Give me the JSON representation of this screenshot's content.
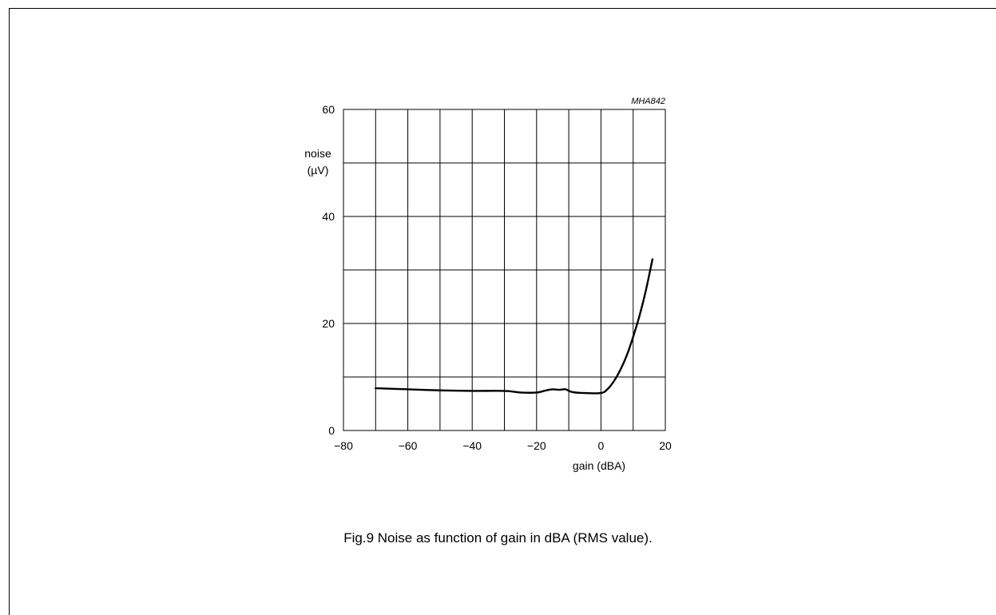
{
  "figure_code": "MHA842",
  "caption": "Fig.9  Noise as function of gain in dBA (RMS value).",
  "chart_data": {
    "type": "line",
    "xlabel": "gain (dBA)",
    "ylabel_lines": [
      "noise",
      "(µV)"
    ],
    "xlim": [
      -80,
      20
    ],
    "ylim": [
      0,
      60
    ],
    "x_ticks": [
      -80,
      -60,
      -40,
      -20,
      0,
      20
    ],
    "x_tick_labels": [
      "−80",
      "−60",
      "−40",
      "−20",
      "0",
      "20"
    ],
    "y_ticks": [
      0,
      20,
      40,
      60
    ],
    "y_tick_labels": [
      "0",
      "20",
      "40",
      "60"
    ],
    "x_grid_step": 10,
    "y_grid_step": 10,
    "grid": true,
    "series": [
      {
        "x": [
          -70,
          -60,
          -50,
          -40,
          -30,
          -25,
          -20,
          -17,
          -15,
          -13,
          -11,
          -9,
          -5,
          0,
          2,
          4,
          6,
          8,
          10,
          12,
          14,
          16
        ],
        "y": [
          7.9,
          7.7,
          7.5,
          7.4,
          7.4,
          7.1,
          7.1,
          7.5,
          7.7,
          7.6,
          7.7,
          7.2,
          7.0,
          7.0,
          7.7,
          9.2,
          11.3,
          14.0,
          17.5,
          21.5,
          26.3,
          32.0
        ]
      }
    ],
    "line_color": "#000000"
  }
}
